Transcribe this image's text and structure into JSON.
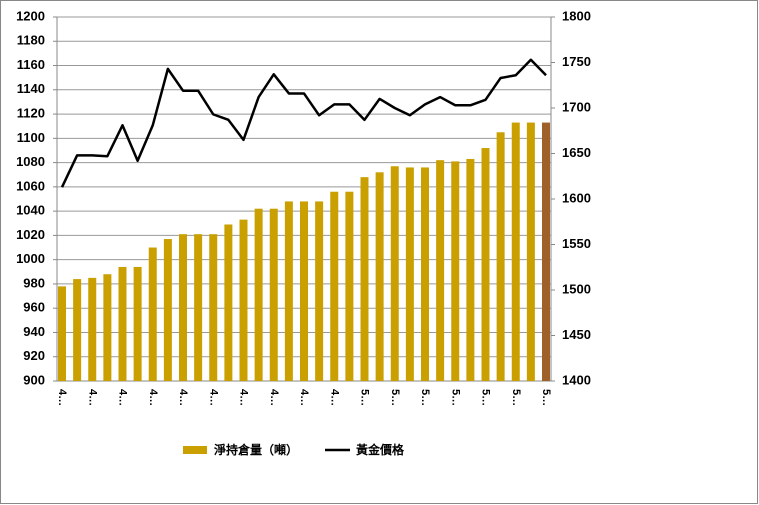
{
  "chart_data": {
    "type": "bar_line",
    "categories": [
      "4…",
      null,
      "4…",
      null,
      "4…",
      null,
      "4…",
      null,
      "4…",
      null,
      "4…",
      null,
      "4…",
      null,
      "4…",
      null,
      "4…",
      null,
      "4…",
      null,
      "5…",
      null,
      "5…",
      null,
      "5…",
      null,
      "5…",
      null,
      "5…",
      null,
      "5…",
      null,
      "5…"
    ],
    "series": [
      {
        "name": "淨持倉量（噸）",
        "type": "bar",
        "color": "#c9a000",
        "colors": [
          "#c9a000",
          "#c9a000",
          "#c9a000",
          "#c9a000",
          "#c9a000",
          "#c9a000",
          "#c9a000",
          "#c9a000",
          "#c9a000",
          "#c9a000",
          "#c9a000",
          "#c9a000",
          "#c9a000",
          "#c9a000",
          "#c9a000",
          "#c9a000",
          "#c9a000",
          "#c9a000",
          "#c9a000",
          "#c9a000",
          "#c9a000",
          "#c9a000",
          "#c9a000",
          "#c9a000",
          "#c9a000",
          "#c9a000",
          "#c9a000",
          "#c9a000",
          "#c9a000",
          "#c9a000",
          "#c9a000",
          "#c9a000",
          "#a0602a"
        ],
        "values": [
          978,
          984,
          985,
          988,
          994,
          994,
          1010,
          1017,
          1021,
          1021,
          1021,
          1029,
          1033,
          1042,
          1042,
          1048,
          1048,
          1048,
          1056,
          1056,
          1068,
          1072,
          1077,
          1076,
          1076,
          1082,
          1081,
          1083,
          1092,
          1105,
          1113,
          1113,
          1113
        ]
      },
      {
        "name": "黃金價格",
        "type": "line",
        "axis": "y2",
        "color": "#000000",
        "values": [
          1613,
          1648,
          1648,
          1647,
          1681,
          1642,
          1681,
          1743,
          1719,
          1719,
          1693,
          1687,
          1665,
          1712,
          1737,
          1716,
          1716,
          1692,
          1704,
          1704,
          1687,
          1710,
          1700,
          1692,
          1704,
          1712,
          1703,
          1703,
          1709,
          1733,
          1736,
          1753,
          1736
        ]
      }
    ],
    "ylim": [
      900,
      1200
    ],
    "yticks": [
      900,
      920,
      940,
      960,
      980,
      1000,
      1020,
      1040,
      1060,
      1080,
      1100,
      1120,
      1140,
      1160,
      1180,
      1200
    ],
    "y2lim": [
      1400,
      1800
    ],
    "y2ticks": [
      1400,
      1450,
      1500,
      1550,
      1600,
      1650,
      1700,
      1750,
      1800
    ],
    "grid": true,
    "legend": "bottom"
  }
}
